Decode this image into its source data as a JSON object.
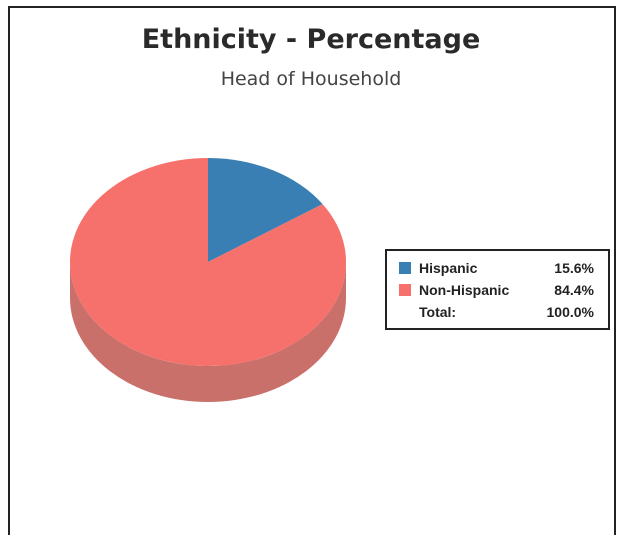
{
  "chart_data": {
    "type": "pie",
    "title": "Ethnicity - Percentage",
    "subtitle": "Head of Household",
    "slices": [
      {
        "label": "Hispanic",
        "value": 15.6,
        "display": "15.6%",
        "color": "#3a7fb3"
      },
      {
        "label": "Non-Hispanic",
        "value": 84.4,
        "display": "84.4%",
        "color": "#f6716b"
      }
    ],
    "total": {
      "label": "Total:",
      "display": "100.0%"
    },
    "legend_position": "right",
    "style": "3d"
  },
  "colors": {
    "hispanic_side": "#25587c",
    "non_hispanic_side": "#c9706a"
  }
}
